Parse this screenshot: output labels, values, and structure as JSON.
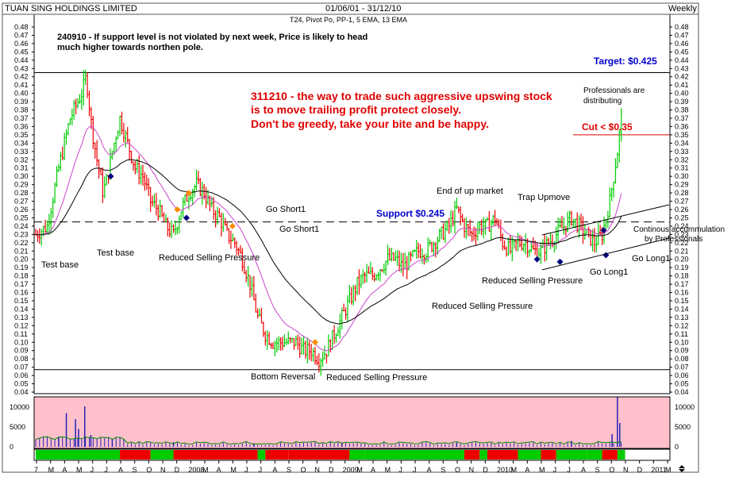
{
  "header": {
    "company": "TUAN SING HOLDINGS LIMITED",
    "date_range": "01/06/01 - 31/12/10",
    "period": "Weekly",
    "indicators": "T24, Pivot Po, PP-1, 5 EMA, 13 EMA"
  },
  "notes": {
    "note_1_line1": "240910 - If support level is not violated by next week, Price is likely to head",
    "note_1_line2": "much higher towards northen pole.",
    "note_2_line1": "311210 - the way to trade such aggressive upswing stock",
    "note_2_line2": "is to move trailing profit protect closely.",
    "note_2_line3": "Don't be greedy, take your bite and be happy.",
    "target": "Target: $0.425",
    "cut": "Cut < $0.35",
    "support": "Support $0.245",
    "professionals": "Professionals are",
    "distributing": "distributing",
    "continous_line1": "Continous accummulation",
    "continous_line2": "by Professionals"
  },
  "annotations": {
    "test_base_1": "Test base",
    "test_base_2": "Test base",
    "reduced_1": "Reduced Selling Pressure",
    "go_short_1": "Go Short1",
    "go_short_2": "Go Short1",
    "bottom_reversal": "Bottom Reversal",
    "reduced_2": "Reduced Selling Pressure",
    "reduced_3": "Reduced Selling Pressure",
    "end_of_up": "End of up market",
    "trap_upmove": "Trap Upmove",
    "reduced_4": "Reduced Selling Pressure",
    "go_long_1": "Go Long1",
    "go_long_2": "Go Long1"
  },
  "colors": {
    "up": "#00cc00",
    "down": "#ee0000",
    "ema5": "#cc44cc",
    "ema13": "#000000",
    "volume_bg": "#ffc0cb",
    "volume_bar": "#2222bb",
    "note_red": "#e00000",
    "note_blue": "#0000cc",
    "marker_blue": "#000080",
    "marker_orange": "#ff8c00"
  },
  "chart_data": {
    "type": "candlestick",
    "y_axis": {
      "min": 0.04,
      "max": 0.48,
      "step": 0.01,
      "ticks": [
        "0.48",
        "0.47",
        "0.46",
        "0.45",
        "0.44",
        "0.43",
        "0.42",
        "0.41",
        "0.40",
        "0.39",
        "0.38",
        "0.37",
        "0.36",
        "0.35",
        "0.34",
        "0.33",
        "0.32",
        "0.31",
        "0.30",
        "0.29",
        "0.28",
        "0.27",
        "0.26",
        "0.25",
        "0.24",
        "0.23",
        "0.22",
        "0.21",
        "0.20",
        "0.19",
        "0.18",
        "0.17",
        "0.16",
        "0.15",
        "0.14",
        "0.13",
        "0.12",
        "0.11",
        "0.10",
        "0.09",
        "0.08",
        "0.07",
        "0.06",
        "0.05",
        "0.04"
      ]
    },
    "volume_axis": {
      "ticks": [
        "10000",
        "5000",
        "0"
      ],
      "max": 12000
    },
    "x_labels": [
      "7",
      "M",
      "A",
      "M",
      "J",
      "J",
      "A",
      "S",
      "O",
      "N",
      "D",
      "2008",
      "M",
      "A",
      "M",
      "J",
      "J",
      "A",
      "S",
      "O",
      "N",
      "D",
      "2009",
      "M",
      "A",
      "M",
      "J",
      "J",
      "A",
      "S",
      "O",
      "N",
      "D",
      "2010",
      "M",
      "A",
      "M",
      "J",
      "J",
      "A",
      "S",
      "O",
      "N",
      "D",
      "2011",
      "M"
    ],
    "price_path": [
      [
        0,
        0.23
      ],
      [
        1.5,
        0.24
      ],
      [
        3,
        0.31
      ],
      [
        4.5,
        0.37
      ],
      [
        6,
        0.4
      ],
      [
        6.6,
        0.42
      ],
      [
        7.3,
        0.36
      ],
      [
        8,
        0.32
      ],
      [
        8.8,
        0.28
      ],
      [
        9.4,
        0.3
      ],
      [
        10,
        0.33
      ],
      [
        11,
        0.37
      ],
      [
        12,
        0.34
      ],
      [
        13,
        0.31
      ],
      [
        14,
        0.3
      ],
      [
        15,
        0.27
      ],
      [
        16,
        0.26
      ],
      [
        17,
        0.24
      ],
      [
        18,
        0.23
      ],
      [
        19,
        0.26
      ],
      [
        20,
        0.28
      ],
      [
        21,
        0.29
      ],
      [
        22,
        0.28
      ],
      [
        23,
        0.26
      ],
      [
        24,
        0.25
      ],
      [
        25,
        0.23
      ],
      [
        26,
        0.22
      ],
      [
        27,
        0.2
      ],
      [
        28,
        0.17
      ],
      [
        29,
        0.13
      ],
      [
        30,
        0.11
      ],
      [
        31,
        0.1
      ],
      [
        32,
        0.1
      ],
      [
        33,
        0.1
      ],
      [
        34,
        0.1
      ],
      [
        35,
        0.09
      ],
      [
        36,
        0.09
      ],
      [
        37,
        0.08
      ],
      [
        38,
        0.09
      ],
      [
        39,
        0.11
      ],
      [
        40,
        0.13
      ],
      [
        41,
        0.15
      ],
      [
        42,
        0.17
      ],
      [
        43,
        0.18
      ],
      [
        44,
        0.18
      ],
      [
        45,
        0.19
      ],
      [
        46,
        0.2
      ],
      [
        47,
        0.2
      ],
      [
        48,
        0.19
      ],
      [
        49,
        0.2
      ],
      [
        50,
        0.21
      ],
      [
        51,
        0.21
      ],
      [
        52,
        0.22
      ],
      [
        53,
        0.23
      ],
      [
        54,
        0.24
      ],
      [
        55,
        0.26
      ],
      [
        56,
        0.24
      ],
      [
        57,
        0.23
      ],
      [
        58,
        0.24
      ],
      [
        59,
        0.24
      ],
      [
        60,
        0.25
      ],
      [
        61,
        0.22
      ],
      [
        62,
        0.21
      ],
      [
        63,
        0.22
      ],
      [
        64,
        0.22
      ],
      [
        65,
        0.21
      ],
      [
        66,
        0.21
      ],
      [
        67,
        0.22
      ],
      [
        68,
        0.23
      ],
      [
        69,
        0.24
      ],
      [
        70,
        0.25
      ],
      [
        71,
        0.24
      ],
      [
        72,
        0.23
      ],
      [
        73,
        0.22
      ],
      [
        74,
        0.23
      ],
      [
        75,
        0.27
      ],
      [
        76,
        0.33
      ],
      [
        76.5,
        0.37
      ]
    ],
    "lines": {
      "resistance": 0.425,
      "support": 0.245,
      "bottom": 0.067,
      "cut": 0.35
    },
    "volume_spikes": [
      [
        3.0,
        2600
      ],
      [
        4.0,
        8500
      ],
      [
        5.2,
        7000
      ],
      [
        5.6,
        4500
      ],
      [
        6.4,
        10200
      ],
      [
        7.2,
        3000
      ],
      [
        10.0,
        2000
      ],
      [
        18.0,
        1200
      ],
      [
        28.5,
        900
      ],
      [
        40.0,
        1100
      ],
      [
        55.0,
        1000
      ],
      [
        70.0,
        1500
      ],
      [
        75.3,
        3200
      ],
      [
        76.0,
        12500
      ],
      [
        76.3,
        6000
      ]
    ]
  }
}
